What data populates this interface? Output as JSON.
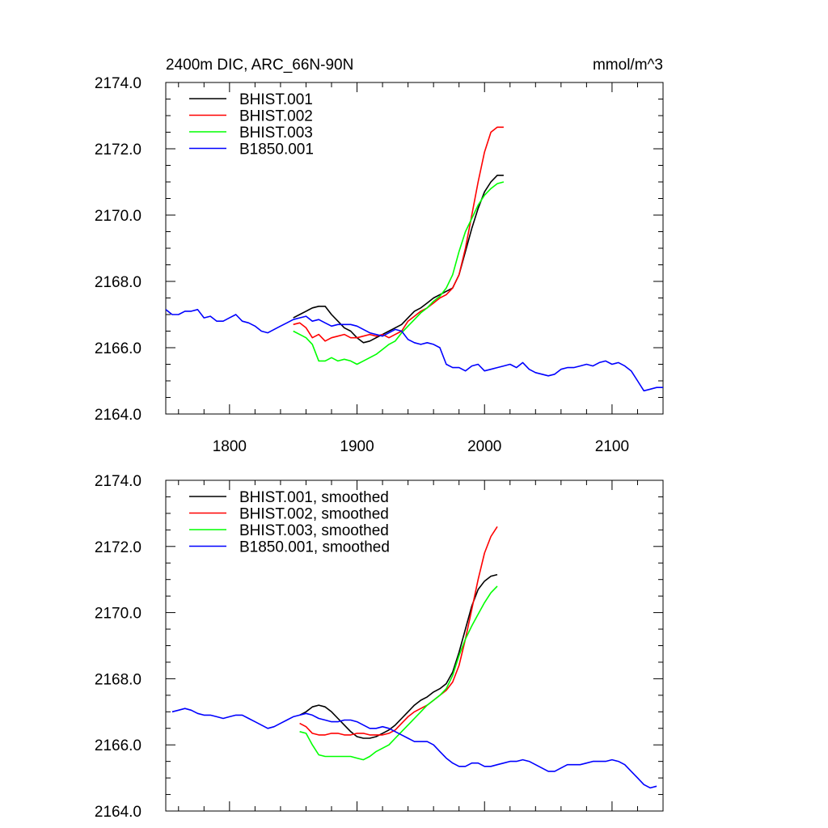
{
  "chart_data": [
    {
      "type": "line",
      "title": "2400m DIC, ARC_66N-90N",
      "units": "mmol/m^3",
      "xlim": [
        1750,
        2140
      ],
      "ylim": [
        2164.0,
        2174.0
      ],
      "x_ticks": [
        1800,
        1900,
        2000,
        2100
      ],
      "x_tick_labels": [
        "1800",
        "1900",
        "2000",
        "2100"
      ],
      "y_ticks": [
        2164,
        2166,
        2168,
        2170,
        2172,
        2174
      ],
      "y_tick_labels": [
        "2164.0",
        "2166.0",
        "2168.0",
        "2170.0",
        "2172.0",
        "2174.0"
      ],
      "legend_position": "top-left",
      "series": [
        {
          "name": "BHIST.001",
          "color": "#000000",
          "x": [
            1850,
            1855,
            1860,
            1865,
            1870,
            1875,
            1880,
            1885,
            1890,
            1895,
            1900,
            1905,
            1910,
            1915,
            1920,
            1925,
            1930,
            1935,
            1940,
            1945,
            1950,
            1955,
            1960,
            1965,
            1970,
            1975,
            1980,
            1985,
            1990,
            1995,
            2000,
            2005,
            2010,
            2015
          ],
          "y": [
            2166.9,
            2167.0,
            2167.1,
            2167.2,
            2167.25,
            2167.25,
            2167.0,
            2166.8,
            2166.6,
            2166.5,
            2166.3,
            2166.15,
            2166.2,
            2166.3,
            2166.4,
            2166.5,
            2166.6,
            2166.7,
            2166.9,
            2167.1,
            2167.2,
            2167.35,
            2167.5,
            2167.6,
            2167.7,
            2167.8,
            2168.2,
            2168.9,
            2169.6,
            2170.2,
            2170.7,
            2171.0,
            2171.2,
            2171.2
          ]
        },
        {
          "name": "BHIST.002",
          "color": "#ff0000",
          "x": [
            1850,
            1855,
            1860,
            1865,
            1870,
            1875,
            1880,
            1885,
            1890,
            1895,
            1900,
            1905,
            1910,
            1915,
            1920,
            1925,
            1930,
            1935,
            1940,
            1945,
            1950,
            1955,
            1960,
            1965,
            1970,
            1975,
            1980,
            1985,
            1990,
            1995,
            2000,
            2005,
            2010,
            2015
          ],
          "y": [
            2166.7,
            2166.75,
            2166.6,
            2166.3,
            2166.4,
            2166.2,
            2166.3,
            2166.35,
            2166.4,
            2166.3,
            2166.3,
            2166.35,
            2166.4,
            2166.35,
            2166.4,
            2166.3,
            2166.4,
            2166.5,
            2166.8,
            2166.95,
            2167.1,
            2167.2,
            2167.35,
            2167.5,
            2167.6,
            2167.8,
            2168.2,
            2169.0,
            2170.0,
            2171.0,
            2171.9,
            2172.5,
            2172.65,
            2172.65
          ]
        },
        {
          "name": "BHIST.003",
          "color": "#00ff00",
          "x": [
            1850,
            1855,
            1860,
            1865,
            1870,
            1875,
            1880,
            1885,
            1890,
            1895,
            1900,
            1905,
            1910,
            1915,
            1920,
            1925,
            1930,
            1935,
            1940,
            1945,
            1950,
            1955,
            1960,
            1965,
            1970,
            1975,
            1980,
            1985,
            1990,
            1995,
            2000,
            2005,
            2010,
            2015
          ],
          "y": [
            2166.5,
            2166.4,
            2166.3,
            2166.1,
            2165.6,
            2165.6,
            2165.7,
            2165.6,
            2165.65,
            2165.6,
            2165.5,
            2165.6,
            2165.7,
            2165.8,
            2165.95,
            2166.1,
            2166.2,
            2166.45,
            2166.65,
            2166.85,
            2167.05,
            2167.2,
            2167.4,
            2167.55,
            2167.8,
            2168.2,
            2168.9,
            2169.5,
            2169.9,
            2170.3,
            2170.6,
            2170.8,
            2170.95,
            2171.0
          ]
        },
        {
          "name": "B1850.001",
          "color": "#0000ff",
          "x": [
            1750,
            1755,
            1760,
            1765,
            1770,
            1775,
            1780,
            1785,
            1790,
            1795,
            1800,
            1805,
            1810,
            1815,
            1820,
            1825,
            1830,
            1835,
            1840,
            1845,
            1850,
            1855,
            1860,
            1865,
            1870,
            1875,
            1880,
            1885,
            1890,
            1895,
            1900,
            1905,
            1910,
            1915,
            1920,
            1925,
            1930,
            1935,
            1940,
            1945,
            1950,
            1955,
            1960,
            1965,
            1970,
            1975,
            1980,
            1985,
            1990,
            1995,
            2000,
            2005,
            2010,
            2015,
            2020,
            2025,
            2030,
            2035,
            2040,
            2045,
            2050,
            2055,
            2060,
            2065,
            2070,
            2075,
            2080,
            2085,
            2090,
            2095,
            2100,
            2105,
            2110,
            2115,
            2120,
            2125,
            2130,
            2135,
            2140
          ],
          "y": [
            2167.15,
            2167.0,
            2167.0,
            2167.1,
            2167.1,
            2167.15,
            2166.9,
            2166.95,
            2166.8,
            2166.8,
            2166.9,
            2167.0,
            2166.8,
            2166.75,
            2166.65,
            2166.5,
            2166.45,
            2166.55,
            2166.65,
            2166.75,
            2166.85,
            2166.9,
            2166.95,
            2166.8,
            2166.85,
            2166.75,
            2166.65,
            2166.7,
            2166.7,
            2166.7,
            2166.65,
            2166.55,
            2166.45,
            2166.4,
            2166.35,
            2166.45,
            2166.55,
            2166.5,
            2166.25,
            2166.15,
            2166.1,
            2166.15,
            2166.1,
            2166.0,
            2165.5,
            2165.4,
            2165.4,
            2165.3,
            2165.45,
            2165.5,
            2165.3,
            2165.35,
            2165.4,
            2165.45,
            2165.5,
            2165.4,
            2165.55,
            2165.35,
            2165.25,
            2165.2,
            2165.15,
            2165.2,
            2165.35,
            2165.4,
            2165.4,
            2165.45,
            2165.5,
            2165.45,
            2165.55,
            2165.6,
            2165.5,
            2165.55,
            2165.45,
            2165.3,
            2165.0,
            2164.7,
            2164.75,
            2164.8,
            2164.8
          ]
        }
      ]
    },
    {
      "type": "line",
      "title": "",
      "xlim": [
        1750,
        2140
      ],
      "ylim": [
        2164.0,
        2174.0
      ],
      "x_ticks": [
        1800,
        1900,
        2000,
        2100
      ],
      "y_ticks": [
        2164,
        2166,
        2168,
        2170,
        2172,
        2174
      ],
      "y_tick_labels": [
        "2164.0",
        "2166.0",
        "2168.0",
        "2170.0",
        "2172.0",
        "2174.0"
      ],
      "legend_position": "top-left",
      "series": [
        {
          "name": "BHIST.001, smoothed",
          "color": "#000000",
          "x": [
            1855,
            1860,
            1865,
            1870,
            1875,
            1880,
            1885,
            1890,
            1895,
            1900,
            1905,
            1910,
            1915,
            1920,
            1925,
            1930,
            1935,
            1940,
            1945,
            1950,
            1955,
            1960,
            1965,
            1970,
            1975,
            1980,
            1985,
            1990,
            1995,
            2000,
            2005,
            2010
          ],
          "y": [
            2166.9,
            2167.0,
            2167.15,
            2167.2,
            2167.15,
            2167.0,
            2166.8,
            2166.6,
            2166.4,
            2166.25,
            2166.2,
            2166.2,
            2166.25,
            2166.35,
            2166.45,
            2166.6,
            2166.8,
            2167.0,
            2167.2,
            2167.35,
            2167.45,
            2167.6,
            2167.7,
            2167.85,
            2168.2,
            2168.8,
            2169.5,
            2170.2,
            2170.7,
            2170.95,
            2171.1,
            2171.15
          ]
        },
        {
          "name": "BHIST.002, smoothed",
          "color": "#ff0000",
          "x": [
            1855,
            1860,
            1865,
            1870,
            1875,
            1880,
            1885,
            1890,
            1895,
            1900,
            1905,
            1910,
            1915,
            1920,
            1925,
            1930,
            1935,
            1940,
            1945,
            1950,
            1955,
            1960,
            1965,
            1970,
            1975,
            1980,
            1985,
            1990,
            1995,
            2000,
            2005,
            2010
          ],
          "y": [
            2166.65,
            2166.55,
            2166.35,
            2166.3,
            2166.3,
            2166.35,
            2166.35,
            2166.3,
            2166.3,
            2166.35,
            2166.35,
            2166.3,
            2166.3,
            2166.3,
            2166.35,
            2166.45,
            2166.65,
            2166.85,
            2167.0,
            2167.1,
            2167.2,
            2167.35,
            2167.5,
            2167.65,
            2167.9,
            2168.4,
            2169.2,
            2170.1,
            2171.0,
            2171.8,
            2172.3,
            2172.6
          ]
        },
        {
          "name": "BHIST.003, smoothed",
          "color": "#00ff00",
          "x": [
            1855,
            1860,
            1865,
            1870,
            1875,
            1880,
            1885,
            1890,
            1895,
            1900,
            1905,
            1910,
            1915,
            1920,
            1925,
            1930,
            1935,
            1940,
            1945,
            1950,
            1955,
            1960,
            1965,
            1970,
            1975,
            1980,
            1985,
            1990,
            1995,
            2000,
            2005,
            2010
          ],
          "y": [
            2166.4,
            2166.35,
            2166.0,
            2165.7,
            2165.65,
            2165.65,
            2165.65,
            2165.65,
            2165.65,
            2165.6,
            2165.55,
            2165.65,
            2165.8,
            2165.9,
            2166.0,
            2166.2,
            2166.4,
            2166.6,
            2166.8,
            2167.0,
            2167.2,
            2167.35,
            2167.5,
            2167.7,
            2168.1,
            2168.7,
            2169.2,
            2169.6,
            2169.95,
            2170.3,
            2170.6,
            2170.8
          ]
        },
        {
          "name": "B1850.001, smoothed",
          "color": "#0000ff",
          "x": [
            1755,
            1760,
            1765,
            1770,
            1775,
            1780,
            1785,
            1790,
            1795,
            1800,
            1805,
            1810,
            1815,
            1820,
            1825,
            1830,
            1835,
            1840,
            1845,
            1850,
            1855,
            1860,
            1865,
            1870,
            1875,
            1880,
            1885,
            1890,
            1895,
            1900,
            1905,
            1910,
            1915,
            1920,
            1925,
            1930,
            1935,
            1940,
            1945,
            1950,
            1955,
            1960,
            1965,
            1970,
            1975,
            1980,
            1985,
            1990,
            1995,
            2000,
            2005,
            2010,
            2015,
            2020,
            2025,
            2030,
            2035,
            2040,
            2045,
            2050,
            2055,
            2060,
            2065,
            2070,
            2075,
            2080,
            2085,
            2090,
            2095,
            2100,
            2105,
            2110,
            2115,
            2120,
            2125,
            2130,
            2135
          ],
          "y": [
            2167.0,
            2167.05,
            2167.1,
            2167.05,
            2166.95,
            2166.9,
            2166.9,
            2166.85,
            2166.8,
            2166.85,
            2166.9,
            2166.9,
            2166.8,
            2166.7,
            2166.6,
            2166.5,
            2166.55,
            2166.65,
            2166.75,
            2166.85,
            2166.9,
            2166.95,
            2166.9,
            2166.8,
            2166.75,
            2166.7,
            2166.7,
            2166.75,
            2166.75,
            2166.7,
            2166.6,
            2166.5,
            2166.5,
            2166.55,
            2166.5,
            2166.4,
            2166.3,
            2166.2,
            2166.1,
            2166.1,
            2166.1,
            2166.0,
            2165.8,
            2165.6,
            2165.45,
            2165.35,
            2165.35,
            2165.45,
            2165.45,
            2165.35,
            2165.35,
            2165.4,
            2165.45,
            2165.5,
            2165.5,
            2165.55,
            2165.5,
            2165.4,
            2165.3,
            2165.2,
            2165.2,
            2165.3,
            2165.4,
            2165.4,
            2165.4,
            2165.45,
            2165.5,
            2165.5,
            2165.5,
            2165.55,
            2165.5,
            2165.4,
            2165.2,
            2165.0,
            2164.8,
            2164.7,
            2164.75
          ]
        }
      ]
    }
  ]
}
